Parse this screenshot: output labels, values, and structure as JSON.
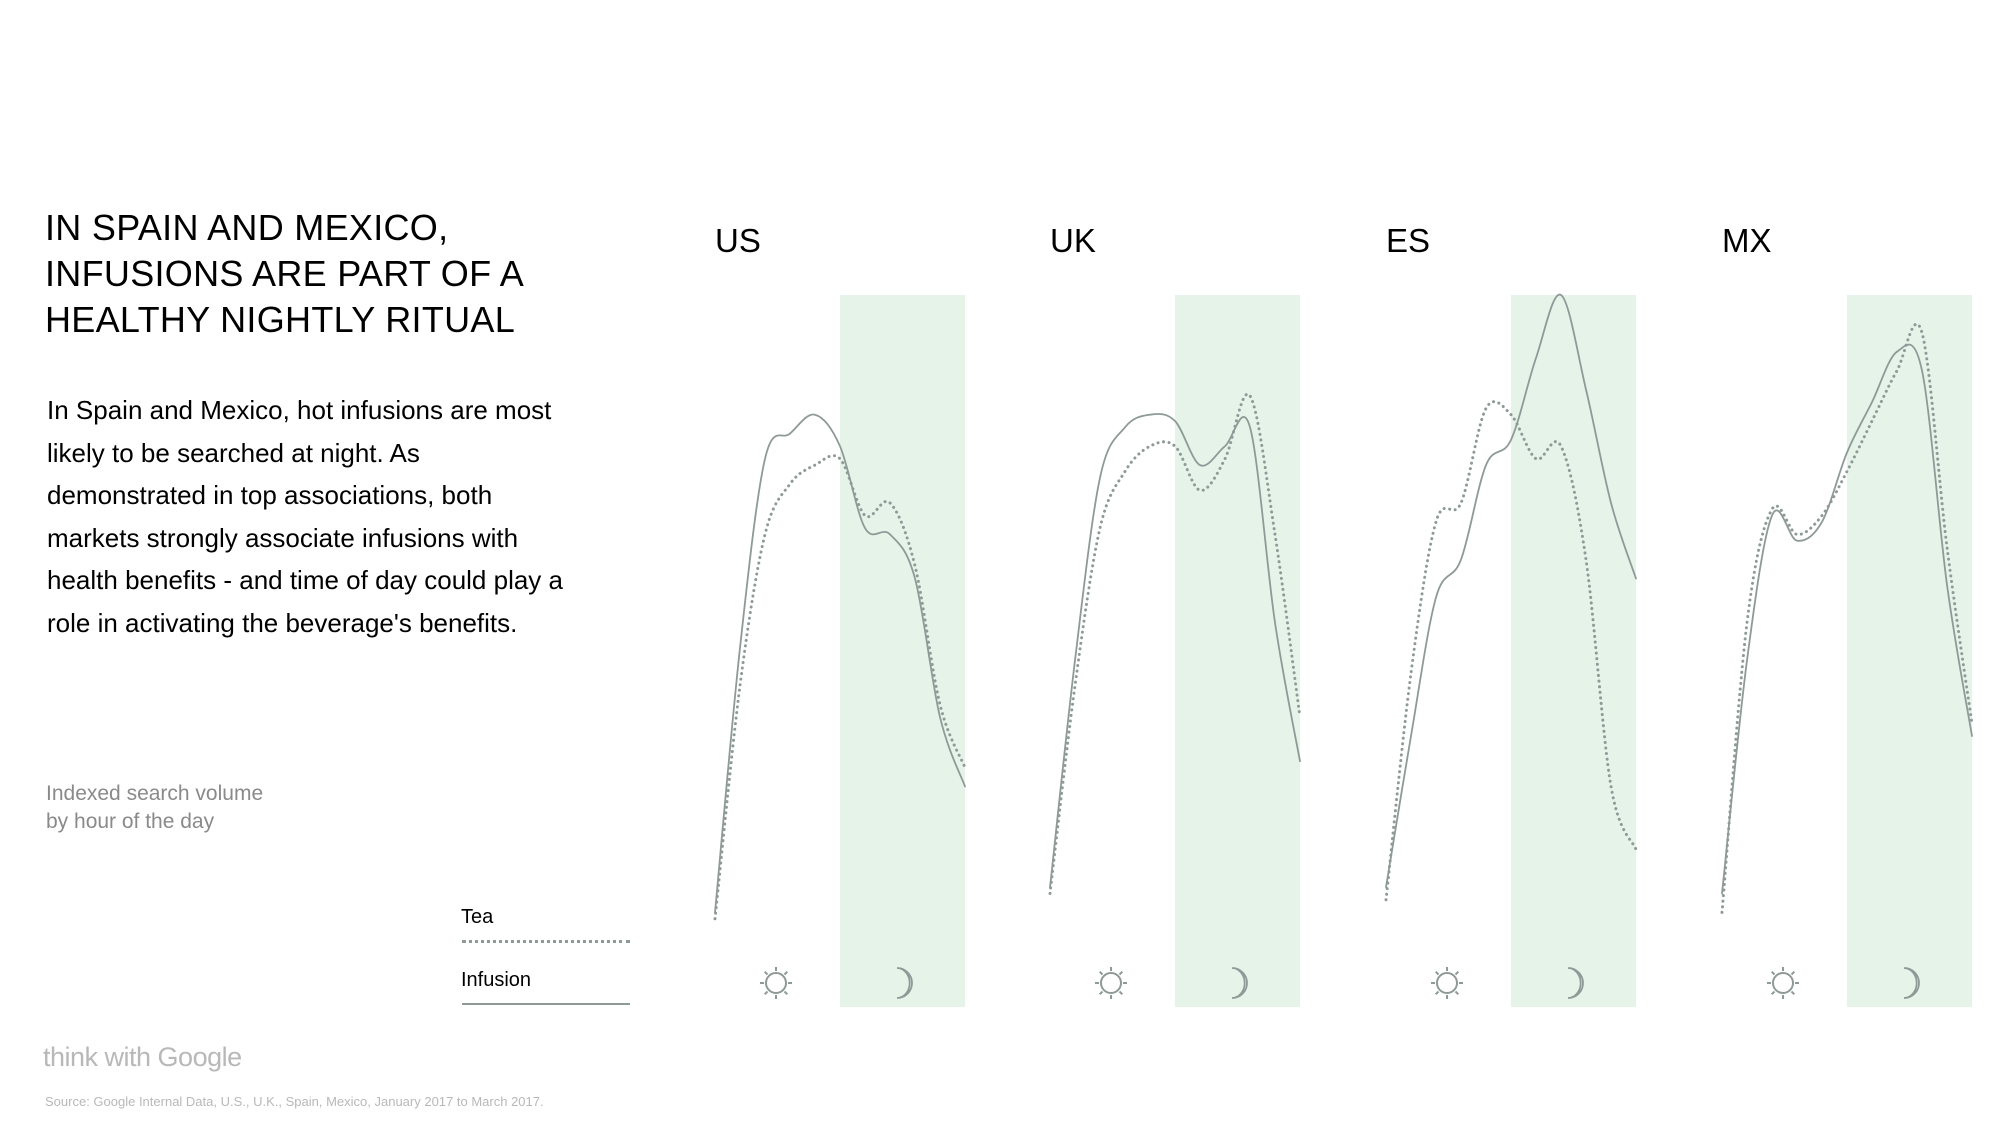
{
  "header": {
    "title": "IN SPAIN AND MEXICO,\nINFUSIONS ARE PART OF A\nHEALTHY NIGHTLY RITUAL",
    "body": "In Spain and Mexico, hot infusions are most likely to be searched at night. As demonstrated in top associations, both markets strongly associate infusions with health benefits - and time of day could play a role in activating the beverage's benefits.",
    "axis_note": "Indexed search volume\nby hour of the day"
  },
  "legend": {
    "tea_label": "Tea",
    "infusion_label": "Infusion"
  },
  "footer": {
    "logo": "think with Google",
    "source": "Source: Google Internal Data, U.S., U.K., Spain, Mexico, January 2017 to March 2017."
  },
  "colors": {
    "night_band": "#e5f3e8",
    "line": "#8e9a98",
    "icon": "#8e9a98"
  },
  "icons": {
    "day": "sun-icon",
    "night": "moon-icon"
  },
  "chart_data": [
    {
      "type": "line",
      "title": "US",
      "xlabel": "",
      "ylabel": "",
      "x": [
        0,
        0.1,
        0.2,
        0.3,
        0.4,
        0.5,
        0.6,
        0.7,
        0.8,
        0.9,
        1.0
      ],
      "ylim": [
        0,
        100
      ],
      "night_start": 0.5,
      "series": [
        {
          "name": "Tea",
          "style": "dotted",
          "values": [
            1,
            38,
            62,
            70,
            73,
            74,
            65,
            67,
            57,
            35,
            25
          ]
        },
        {
          "name": "Infusion",
          "style": "solid",
          "values": [
            2,
            44,
            74,
            78,
            81,
            76,
            63,
            62,
            55,
            33,
            22
          ]
        }
      ]
    },
    {
      "type": "line",
      "title": "UK",
      "xlabel": "",
      "ylabel": "",
      "x": [
        0,
        0.1,
        0.2,
        0.3,
        0.4,
        0.5,
        0.6,
        0.7,
        0.8,
        0.9,
        1.0
      ],
      "ylim": [
        0,
        100
      ],
      "night_start": 0.5,
      "series": [
        {
          "name": "Tea",
          "style": "dotted",
          "values": [
            5,
            38,
            63,
            72,
            76,
            76,
            69,
            74,
            84,
            62,
            33
          ]
        },
        {
          "name": "Infusion",
          "style": "solid",
          "values": [
            6,
            42,
            71,
            79,
            81,
            80,
            73,
            76,
            79,
            48,
            26
          ]
        }
      ]
    },
    {
      "type": "line",
      "title": "ES",
      "xlabel": "",
      "ylabel": "",
      "x": [
        0,
        0.1,
        0.2,
        0.3,
        0.4,
        0.5,
        0.6,
        0.7,
        0.8,
        0.9,
        1.0
      ],
      "ylim": [
        0,
        100
      ],
      "night_start": 0.5,
      "series": [
        {
          "name": "Tea",
          "style": "dotted",
          "values": [
            4,
            40,
            64,
            67,
            82,
            81,
            74,
            76,
            58,
            22,
            12
          ]
        },
        {
          "name": "Infusion",
          "style": "solid",
          "values": [
            6,
            30,
            52,
            58,
            73,
            77,
            90,
            100,
            85,
            67,
            55
          ]
        }
      ]
    },
    {
      "type": "line",
      "title": "MX",
      "xlabel": "",
      "ylabel": "",
      "x": [
        0,
        0.1,
        0.2,
        0.3,
        0.4,
        0.5,
        0.6,
        0.7,
        0.8,
        0.9,
        1.0
      ],
      "ylim": [
        0,
        100
      ],
      "night_start": 0.5,
      "series": [
        {
          "name": "Tea",
          "style": "dotted",
          "values": [
            2,
            48,
            66,
            62,
            65,
            72,
            80,
            88,
            94,
            60,
            32
          ]
        },
        {
          "name": "Infusion",
          "style": "solid",
          "values": [
            5,
            42,
            65,
            61,
            64,
            75,
            83,
            91,
            88,
            54,
            30
          ]
        }
      ]
    }
  ]
}
